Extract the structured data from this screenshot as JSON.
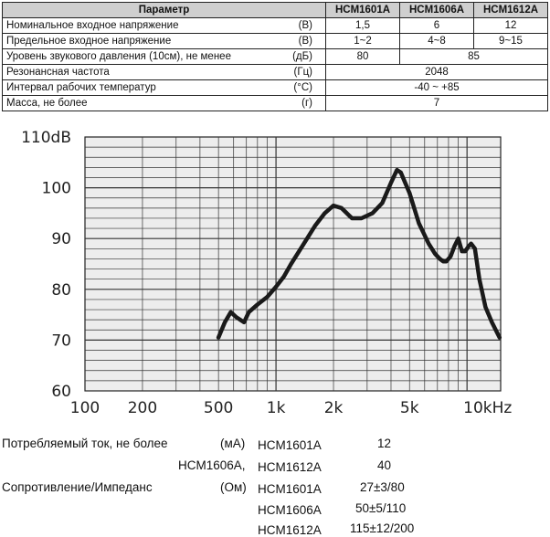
{
  "table": {
    "headers": [
      "Параметр",
      "HCM1601A",
      "HCM1606A",
      "HCM1612A"
    ],
    "rows": [
      {
        "name": "Номинальное входное напряжение",
        "unit": "(В)",
        "values": [
          "1,5",
          "6",
          "12"
        ]
      },
      {
        "name": "Предельное входное напряжение",
        "unit": "(В)",
        "values": [
          "1~2",
          "4~8",
          "9~15"
        ]
      },
      {
        "name": "Уровень звукового давления (10см), не менее",
        "unit": "(дБ)",
        "values": [
          "80",
          "85"
        ]
      },
      {
        "name": "Резонансная частота",
        "unit": "(Гц)",
        "values": [
          "2048"
        ]
      },
      {
        "name": "Интервал рабочих температур",
        "unit": "(°C)",
        "values": [
          "-40 ~ +85"
        ]
      },
      {
        "name": "Масса, не более",
        "unit": "(г)",
        "values": [
          "7"
        ]
      }
    ]
  },
  "chart_data": {
    "type": "line",
    "x_scale": "log",
    "y_tick_labels": [
      "110dB",
      "100",
      "90",
      "80",
      "70",
      "60"
    ],
    "y_tick_values": [
      110,
      100,
      90,
      80,
      70,
      60
    ],
    "x_tick_labels": [
      "100",
      "200",
      "500",
      "1k",
      "2k",
      "5k",
      "10kHz"
    ],
    "x_tick_values": [
      100,
      200,
      500,
      1000,
      2000,
      5000,
      10000
    ],
    "xlim": [
      100,
      15000
    ],
    "ylim": [
      60,
      110
    ],
    "grid": true,
    "series": [
      {
        "x": [
          500,
          540,
          580,
          620,
          680,
          720,
          800,
          900,
          1000,
          1100,
          1200,
          1400,
          1600,
          1800,
          2000,
          2200,
          2500,
          2800,
          3200,
          3600,
          4000,
          4300,
          4500,
          5000,
          5600,
          6300,
          6800,
          7200,
          7500,
          7800,
          8200,
          8600,
          9000,
          9400,
          9800,
          10200,
          10500,
          11000,
          11600,
          12500,
          13500,
          14800
        ],
        "y": [
          70.5,
          73.5,
          75.5,
          74.5,
          73.5,
          75.5,
          77,
          78.5,
          80.5,
          82.5,
          85,
          89,
          92.5,
          95,
          96.5,
          96,
          94,
          94,
          95,
          97,
          101,
          103.5,
          103,
          99,
          93,
          89,
          87,
          86,
          85.5,
          85.5,
          86.5,
          88.5,
          90,
          87.5,
          87.5,
          88.5,
          89,
          88,
          82,
          76.5,
          73.5,
          70.5
        ]
      }
    ]
  },
  "bottom": {
    "current_label": "Потребляемый ток, не более",
    "current_unit": "(мА)",
    "current_model1": "HCM1601A",
    "current_val1": "12",
    "current_model2": "HCM1606A,",
    "current_model3": "HCM1612A",
    "current_val2": "40",
    "imp_label": "Сопротивление/Импеданс",
    "imp_unit": "(Ом)",
    "imp_model1": "HCM1601A",
    "imp_val1": "27±3/80",
    "imp_model2": "HCM1606A",
    "imp_val2": "50±5/110",
    "imp_model3": "HCM1612A",
    "imp_val3": "115±12/200"
  }
}
